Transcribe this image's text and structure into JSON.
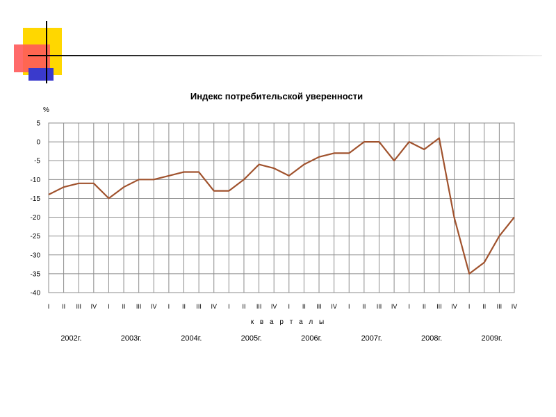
{
  "slide": {
    "accent_colors": {
      "yellow": "#FFD700",
      "red": "#FF5050",
      "blue": "#3333CC"
    }
  },
  "chart_data": {
    "type": "line",
    "title": "Индекс потребительской уверенности",
    "ylabel": "%",
    "xlabel": "к в а р т а л ы",
    "ylim": [
      -40,
      5
    ],
    "yticks": [
      5,
      0,
      -5,
      -10,
      -15,
      -20,
      -25,
      -30,
      -35,
      -40
    ],
    "grid": true,
    "line_color": "#A0522D",
    "quarter_labels": [
      "I",
      "II",
      "III",
      "IV",
      "I",
      "II",
      "III",
      "IV",
      "I",
      "II",
      "III",
      "IV",
      "I",
      "II",
      "III",
      "IV",
      "I",
      "II",
      "III",
      "IV",
      "I",
      "II",
      "III",
      "IV",
      "I",
      "II",
      "III",
      "IV",
      "I",
      "II",
      "III",
      "IV"
    ],
    "years": [
      "2002г.",
      "2003г.",
      "2004г.",
      "2005г.",
      "2006г.",
      "2007г.",
      "2008г.",
      "2009г."
    ],
    "series": [
      {
        "values": [
          -14,
          -12,
          -11,
          -11,
          -15,
          -12,
          -10,
          -10,
          -9,
          -8,
          -8,
          -13,
          -13,
          -10,
          -6,
          -7,
          -9,
          -6,
          -4,
          -3,
          -3,
          0,
          0,
          -5,
          0,
          -2,
          1,
          -20,
          -35,
          -32,
          -25,
          -20
        ]
      }
    ]
  }
}
